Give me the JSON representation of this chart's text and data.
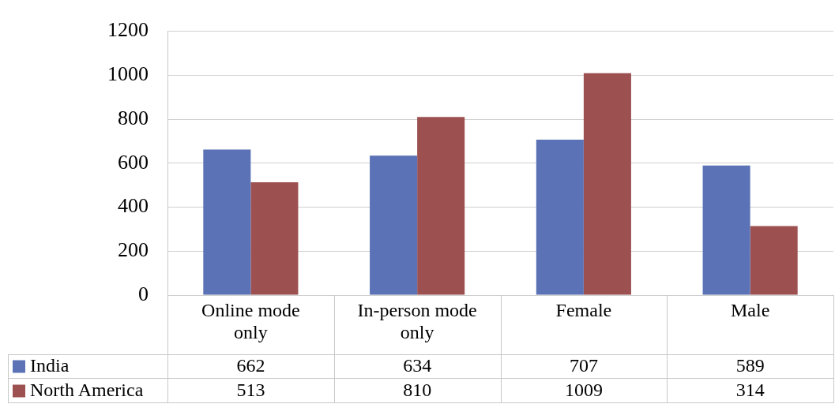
{
  "chart_data": {
    "type": "bar",
    "categories": [
      "Online mode only",
      "In-person mode only",
      "Female",
      "Male"
    ],
    "series": [
      {
        "name": "India",
        "color": "#5b73b6",
        "values": [
          662,
          634,
          707,
          589
        ]
      },
      {
        "name": "North America",
        "color": "#9c5050",
        "values": [
          513,
          810,
          1009,
          314
        ]
      }
    ],
    "ylim": [
      0,
      1200
    ],
    "yticks": [
      0,
      200,
      400,
      600,
      800,
      1000,
      1200
    ],
    "grid": "y",
    "legend": "bottom",
    "data_labels": true
  }
}
